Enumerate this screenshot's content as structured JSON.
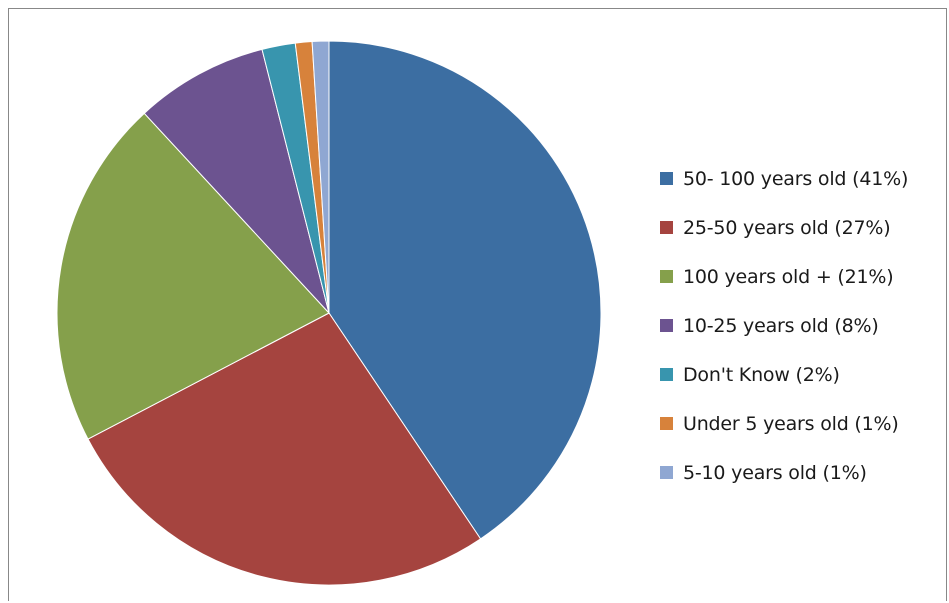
{
  "chart_data": {
    "type": "pie",
    "title": "",
    "categories": [
      "50- 100 years old (41%)",
      "25-50 years old (27%)",
      "100 years old + (21%)",
      "10-25 years old (8%)",
      "Don't Know (2%)",
      "Under 5 years old (1%)",
      "5-10 years old (1%)"
    ],
    "values": [
      41,
      27,
      21,
      8,
      2,
      1,
      1
    ],
    "colors": [
      "#3C6EA2",
      "#A5443F",
      "#85A04B",
      "#6C5390",
      "#3895AE",
      "#D7823B",
      "#8FA7D2"
    ],
    "legend_position": "right",
    "start_angle": "top",
    "direction": "clockwise"
  }
}
